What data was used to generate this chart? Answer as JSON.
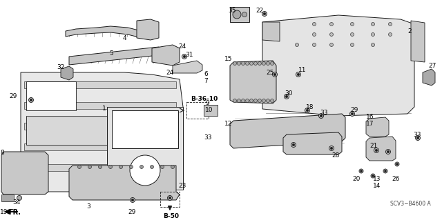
{
  "bg_color": "#ffffff",
  "diagram_code": "SCV3−B4600 A",
  "fr_label": "FR.",
  "b36_label": "B-36-10",
  "b50_label": "B-50",
  "figsize": [
    6.4,
    3.19
  ],
  "dpi": 100,
  "line_color": "#1a1a1a",
  "fill_light": "#e0e0e0",
  "fill_mid": "#c8c8c8",
  "fill_dark": "#aaaaaa",
  "label_fontsize": 6.5,
  "code_fontsize": 5.5
}
